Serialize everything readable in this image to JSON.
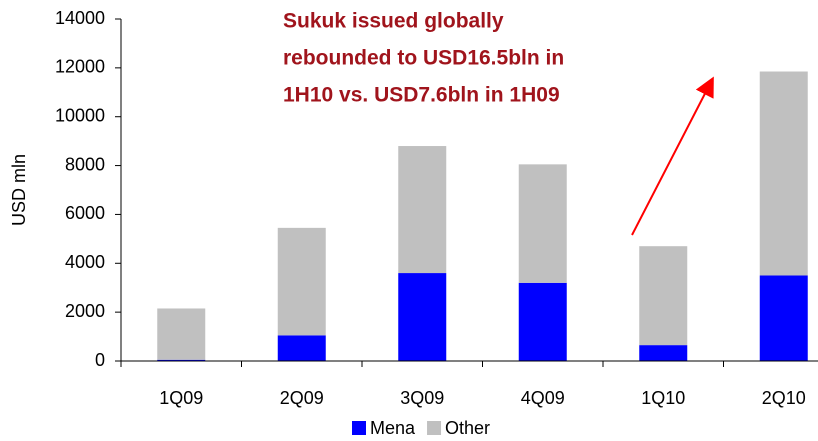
{
  "chart_data": {
    "type": "stacked_bar",
    "ylabel": "USD mln",
    "annotation": [
      "Sukuk issued globally",
      "rebounded to USD16.5bln in",
      "1H10 vs. USD7.6bln in 1H09"
    ],
    "categories": [
      "1Q09",
      "2Q09",
      "3Q09",
      "4Q09",
      "1Q10",
      "2Q10"
    ],
    "series": [
      {
        "name": "Mena",
        "color": "#0000ff",
        "values": [
          50,
          1050,
          3600,
          3200,
          650,
          3500
        ]
      },
      {
        "name": "Other",
        "color": "#c0c0c0",
        "values": [
          2100,
          4400,
          5200,
          4850,
          4050,
          8350
        ]
      }
    ],
    "ylim": [
      0,
      14000
    ],
    "yticks": [
      0,
      2000,
      4000,
      6000,
      8000,
      10000,
      12000,
      14000
    ],
    "legend": "bottom"
  }
}
